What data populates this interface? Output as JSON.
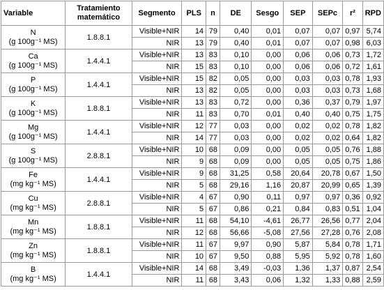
{
  "table": {
    "header": [
      "Variable",
      "Tratamiento matemático",
      "Segmento",
      "PLS",
      "n",
      "DE",
      "Sesgo",
      "SEP",
      "SEPc",
      "r²",
      "RPD"
    ],
    "rows": [
      {
        "variable": "N",
        "unit": "(g 100g⁻¹ MS)",
        "treatment": "1.8.8.1",
        "segments": [
          {
            "segment": "Visible+NIR",
            "values": [
              "14",
              "79",
              "0,40",
              "0,01",
              "0,07",
              "0,07",
              "0,97",
              "5,74"
            ]
          },
          {
            "segment": "NIR",
            "values": [
              "13",
              "79",
              "0,40",
              "0,01",
              "0,07",
              "0,07",
              "0,98",
              "6,03"
            ]
          }
        ]
      },
      {
        "variable": "Ca",
        "unit": "(g 100g⁻¹ MS)",
        "treatment": "1.4.4.1",
        "segments": [
          {
            "segment": "Visible+NIR",
            "values": [
              "13",
              "83",
              "0,10",
              "0,00",
              "0,06",
              "0,06",
              "0,73",
              "1,72"
            ]
          },
          {
            "segment": "NIR",
            "values": [
              "15",
              "83",
              "0,10",
              "0,00",
              "0,06",
              "0,06",
              "0,72",
              "1,61"
            ]
          }
        ]
      },
      {
        "variable": "P",
        "unit": "(g 100g⁻¹ MS)",
        "treatment": "1.4.4.1",
        "segments": [
          {
            "segment": "Visible+NIR",
            "values": [
              "15",
              "82",
              "0,05",
              "0,00",
              "0,03",
              "0,03",
              "0,78",
              "1,93"
            ]
          },
          {
            "segment": "NIR",
            "values": [
              "13",
              "82",
              "0,05",
              "0,00",
              "0,03",
              "0,03",
              "0,73",
              "1,68"
            ]
          }
        ]
      },
      {
        "variable": "K",
        "unit": "(g 100g⁻¹ MS)",
        "treatment": "1.8.8.1",
        "segments": [
          {
            "segment": "Visible+NIR",
            "values": [
              "13",
              "83",
              "0,72",
              "0,00",
              "0,36",
              "0,37",
              "0,79",
              "1,97"
            ]
          },
          {
            "segment": "NIR",
            "values": [
              "11",
              "83",
              "0,70",
              "0,01",
              "0,40",
              "0,40",
              "0,75",
              "1,75"
            ]
          }
        ]
      },
      {
        "variable": "Mg",
        "unit": "(g 100g⁻¹ MS)",
        "treatment": "1.4.4.1",
        "segments": [
          {
            "segment": "Visible+NIR",
            "values": [
              "12",
              "77",
              "0,03",
              "0,00",
              "0,02",
              "0,02",
              "0,78",
              "1,82"
            ]
          },
          {
            "segment": "NIR",
            "values": [
              "14",
              "77",
              "0,03",
              "0,00",
              "0,02",
              "0,02",
              "0,64",
              "1,82"
            ]
          }
        ]
      },
      {
        "variable": "S",
        "unit": "(g 100g⁻¹ MS)",
        "treatment": "2.8.8.1",
        "segments": [
          {
            "segment": "Visible+NIR",
            "values": [
              "10",
              "68",
              "0,09",
              "0,00",
              "0,05",
              "0,05",
              "0,76",
              "1,88"
            ]
          },
          {
            "segment": "NIR",
            "values": [
              "9",
              "68",
              "0,09",
              "0,00",
              "0,05",
              "0,05",
              "0,75",
              "1,86"
            ]
          }
        ]
      },
      {
        "variable": "Fe",
        "unit": "(mg kg⁻¹ MS)",
        "treatment": "1.4.4.1",
        "segments": [
          {
            "segment": "Visible+NIR",
            "values": [
              "9",
              "68",
              "31,25",
              "0,58",
              "20,64",
              "20,78",
              "0,67",
              "1,50"
            ]
          },
          {
            "segment": "NIR",
            "values": [
              "5",
              "68",
              "29,16",
              "1,16",
              "20,87",
              "20,99",
              "0,65",
              "1,39"
            ]
          }
        ]
      },
      {
        "variable": "Cu",
        "unit": "(mg kg⁻¹ MS)",
        "treatment": "2.8.8.1",
        "segments": [
          {
            "segment": "Visible+NIR",
            "values": [
              "4",
              "67",
              "0,90",
              "0,11",
              "0,97",
              "0,97",
              "0,36",
              "0,92"
            ]
          },
          {
            "segment": "NIR",
            "values": [
              "5",
              "67",
              "0,86",
              "0,21",
              "0,84",
              "0,83",
              "0,51",
              "1,04"
            ]
          }
        ]
      },
      {
        "variable": "Mn",
        "unit": "(mg kg⁻¹ MS)",
        "treatment": "1.8.8.1",
        "segments": [
          {
            "segment": "Visible+NIR",
            "values": [
              "11",
              "68",
              "54,10",
              "-4,61",
              "26,77",
              "26,56",
              "0,77",
              "2,04"
            ]
          },
          {
            "segment": "NIR",
            "values": [
              "12",
              "68",
              "56,66",
              "-5,08",
              "27,56",
              "27,28",
              "0,76",
              "2,08"
            ]
          }
        ]
      },
      {
        "variable": "Zn",
        "unit": "(mg kg⁻¹ MS)",
        "treatment": "1.8.8.1",
        "segments": [
          {
            "segment": "Visible+NIR",
            "values": [
              "11",
              "67",
              "9,97",
              "0,90",
              "5,87",
              "5,84",
              "0,78",
              "1,71"
            ]
          },
          {
            "segment": "NIR",
            "values": [
              "10",
              "67",
              "9,50",
              "0,88",
              "5,95",
              "5,92",
              "0,78",
              "1,60"
            ]
          }
        ]
      },
      {
        "variable": "B",
        "unit": "(mg kg⁻¹ MS)",
        "treatment": "1.4.4.1",
        "segments": [
          {
            "segment": "Visible+NIR",
            "values": [
              "14",
              "68",
              "3,49",
              "-0,03",
              "1,36",
              "1,37",
              "0,87",
              "2,54"
            ]
          },
          {
            "segment": "NIR",
            "values": [
              "11",
              "68",
              "3,43",
              "0,06",
              "1,32",
              "1,33",
              "0,88",
              "2,59"
            ]
          }
        ]
      }
    ]
  }
}
